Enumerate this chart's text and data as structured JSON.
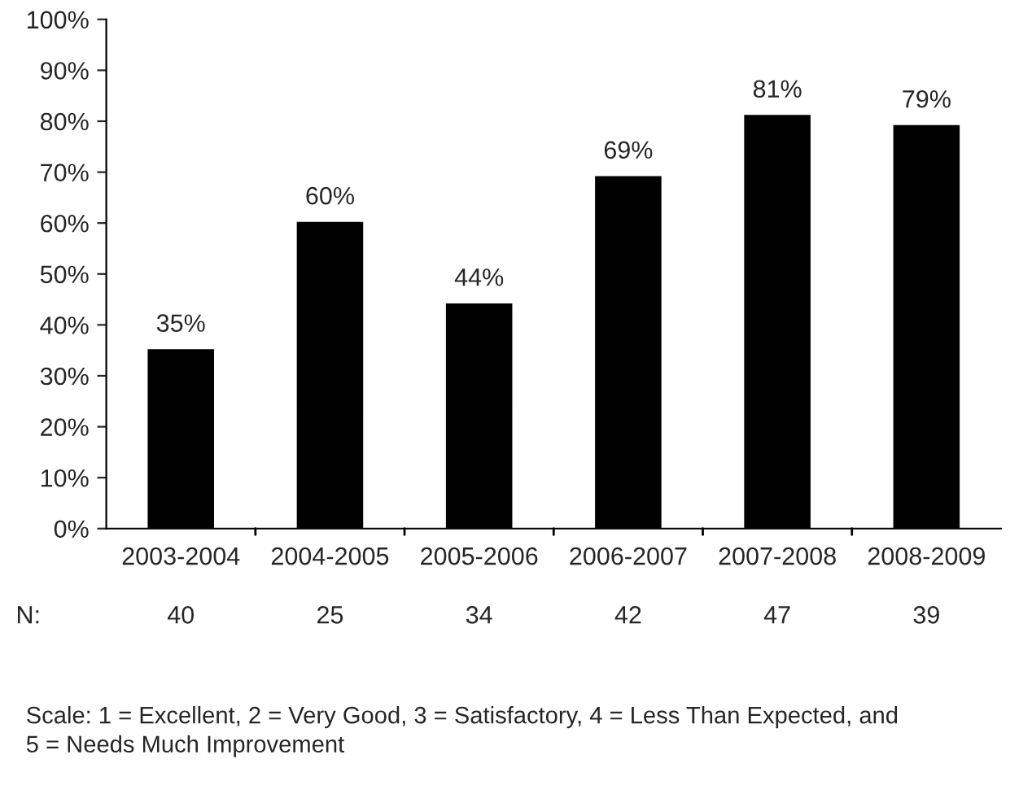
{
  "chart_data": {
    "type": "bar",
    "categories": [
      "2003-2004",
      "2004-2005",
      "2005-2006",
      "2006-2007",
      "2007-2008",
      "2008-2009"
    ],
    "values": [
      35,
      60,
      44,
      69,
      81,
      79
    ],
    "value_labels": [
      "35%",
      "60%",
      "44%",
      "69%",
      "81%",
      "79%"
    ],
    "color": "#000000",
    "ylim": [
      0,
      100
    ],
    "yticks": [
      {
        "value": 0,
        "label": "0%"
      },
      {
        "value": 10,
        "label": "10%"
      },
      {
        "value": 20,
        "label": "20%"
      },
      {
        "value": 30,
        "label": "30%"
      },
      {
        "value": 40,
        "label": "40%"
      },
      {
        "value": 50,
        "label": "50%"
      },
      {
        "value": 60,
        "label": "60%"
      },
      {
        "value": 70,
        "label": "70%"
      },
      {
        "value": 80,
        "label": "80%"
      },
      {
        "value": 90,
        "label": "90%"
      },
      {
        "value": 100,
        "label": "100%"
      }
    ],
    "grid": false,
    "legend": false,
    "annotations": [
      "N:",
      "40",
      "25",
      "34",
      "42",
      "47",
      "39",
      "Scale: 1 = Excellent, 2 = Very Good, 3 = Satisfactory, 4 = Less Than Expected, and\n5 = Needs Much Improvement"
    ]
  }
}
